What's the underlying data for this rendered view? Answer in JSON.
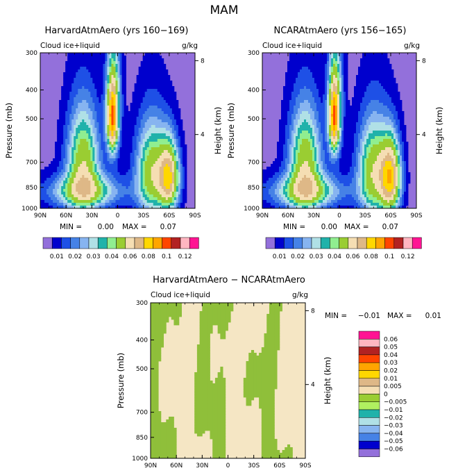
{
  "page": {
    "title": "MAM"
  },
  "chart_data": [
    {
      "type": "heatmap",
      "id": "top-left",
      "title": "HarvardAtmAero (yrs 160−169)",
      "subtitle_left": "Cloud ice+liquid",
      "subtitle_right": "g/kg",
      "xlabel": "",
      "ylabel": "Pressure (mb)",
      "ylabel_right": "Height (km)",
      "x_ticks": [
        "90N",
        "60N",
        "30N",
        "0",
        "30S",
        "60S",
        "90S"
      ],
      "y_ticks": [
        "300",
        "400",
        "500",
        "700",
        "850",
        "1000"
      ],
      "y_right_ticks": [
        "8",
        "4"
      ],
      "stats": {
        "min_label": "MIN =",
        "min": "0.00",
        "max_label": "MAX =",
        "max": "0.07"
      },
      "features": [
        {
          "lat": -40,
          "p": 760,
          "value": 0.045,
          "sx": 13,
          "sp": 190
        },
        {
          "lat": 40,
          "p": 700,
          "value": 0.045,
          "sx": 13,
          "sp": 190
        },
        {
          "lat": 6,
          "p": 500,
          "value": 0.06,
          "sx": 4,
          "sp": 90
        },
        {
          "lat": -60,
          "p": 790,
          "value": 0.06,
          "sx": 8,
          "sp": 140
        },
        {
          "lat": 5,
          "p": 430,
          "value": 0.035,
          "sx": 6,
          "sp": 140
        },
        {
          "lat": 38,
          "p": 880,
          "value": 0.035,
          "sx": 30,
          "sp": 80
        }
      ]
    },
    {
      "type": "heatmap",
      "id": "top-right",
      "title": "NCARAtmAero (yrs 156−165)",
      "subtitle_left": "Cloud ice+liquid",
      "subtitle_right": "g/kg",
      "xlabel": "",
      "ylabel": "Pressure (mb)",
      "ylabel_right": "Height (km)",
      "x_ticks": [
        "90N",
        "60N",
        "30N",
        "0",
        "30S",
        "60S",
        "90S"
      ],
      "y_ticks": [
        "300",
        "400",
        "500",
        "700",
        "850",
        "1000"
      ],
      "y_right_ticks": [
        "8",
        "4"
      ],
      "stats": {
        "min_label": "MIN =",
        "min": "0.00",
        "max_label": "MAX =",
        "max": "0.07"
      },
      "features": [
        {
          "lat": -40,
          "p": 760,
          "value": 0.046,
          "sx": 13,
          "sp": 200
        },
        {
          "lat": 40,
          "p": 700,
          "value": 0.045,
          "sx": 13,
          "sp": 190
        },
        {
          "lat": 6,
          "p": 500,
          "value": 0.06,
          "sx": 4,
          "sp": 90
        },
        {
          "lat": -60,
          "p": 790,
          "value": 0.065,
          "sx": 8,
          "sp": 150
        },
        {
          "lat": 5,
          "p": 430,
          "value": 0.035,
          "sx": 6,
          "sp": 140
        },
        {
          "lat": 38,
          "p": 880,
          "value": 0.035,
          "sx": 30,
          "sp": 80
        }
      ]
    },
    {
      "type": "heatmap",
      "id": "difference",
      "title": "HarvardAtmAero − NCARAtmAero",
      "subtitle_left": "Cloud ice+liquid",
      "subtitle_right": "g/kg",
      "xlabel": "",
      "ylabel": "Pressure (mb)",
      "ylabel_right": "Height (km)",
      "x_ticks": [
        "90N",
        "60N",
        "30N",
        "0",
        "30S",
        "60S",
        "90S"
      ],
      "y_ticks": [
        "300",
        "400",
        "500",
        "700",
        "850",
        "1000"
      ],
      "y_right_ticks": [
        "8",
        "4"
      ],
      "stats": {
        "min_label": "MIN =",
        "min": "−0.01",
        "max_label": "MAX =",
        "max": "0.01"
      },
      "features": []
    }
  ],
  "legend_top": {
    "labels": [
      "0.01",
      "0.02",
      "0.03",
      "0.04",
      "0.06",
      "0.08",
      "0.1",
      "0.12"
    ],
    "levels": [
      0.005,
      0.01,
      0.015,
      0.02,
      0.025,
      0.03,
      0.035,
      0.04,
      0.05,
      0.06,
      0.07,
      0.08,
      0.09,
      0.1,
      0.11,
      0.12
    ],
    "colors": [
      "#9370db",
      "#0000cd",
      "#1e50e6",
      "#4682e6",
      "#87b4f0",
      "#b0e0e6",
      "#20b2aa",
      "#90ee90",
      "#9acd32",
      "#f5deb3",
      "#deb887",
      "#ffd700",
      "#ffa500",
      "#ff4500",
      "#b22222",
      "#ffb6c1",
      "#ff1493"
    ]
  },
  "legend_diff": {
    "labels": [
      "0.06",
      "0.05",
      "0.04",
      "0.03",
      "0.02",
      "0.01",
      "0.005",
      "0",
      "−0.005",
      "−0.01",
      "−0.02",
      "−0.03",
      "−0.04",
      "−0.05",
      "−0.06"
    ],
    "colors": [
      "#ff1493",
      "#ffb6c1",
      "#b22222",
      "#ff4500",
      "#ffa500",
      "#ffd700",
      "#deb887",
      "#f5deb3",
      "#9acd32",
      "#b0f060",
      "#20b2aa",
      "#b0e0e6",
      "#87b4f0",
      "#4682e6",
      "#0000cd",
      "#9370db"
    ]
  },
  "colors": {
    "diff_positive": "#f5e6c4",
    "diff_negative": "#8fbf3a"
  }
}
